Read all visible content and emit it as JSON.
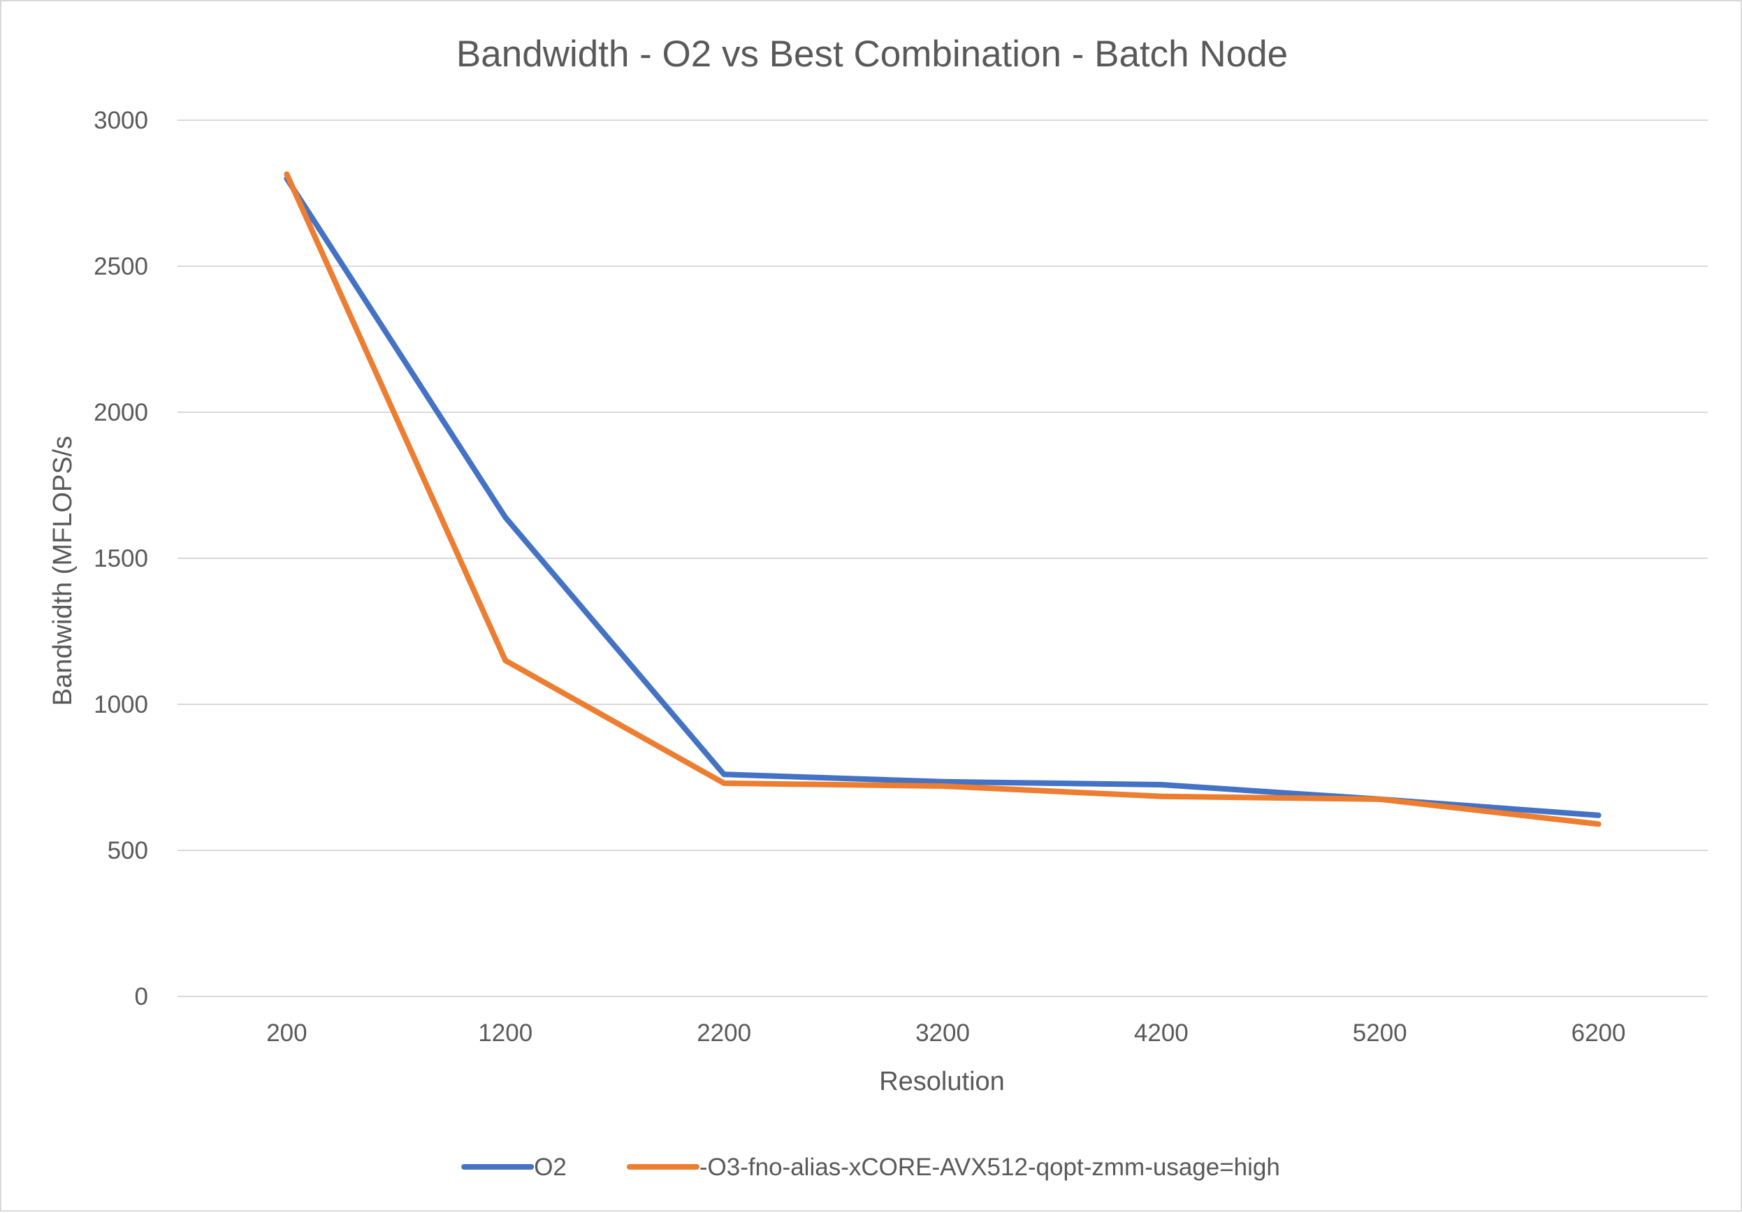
{
  "chart_data": {
    "type": "line",
    "title": "Bandwidth - O2 vs Best Combination - Batch Node",
    "xlabel": "Resolution",
    "ylabel": "Bandwidth (MFLOPS/s",
    "categories": [
      "200",
      "1200",
      "2200",
      "3200",
      "4200",
      "5200",
      "6200"
    ],
    "ylim": [
      0,
      3000
    ],
    "yticks": [
      "0",
      "500",
      "1000",
      "1500",
      "2000",
      "2500",
      "3000"
    ],
    "grid": true,
    "legend_position": "bottom",
    "series": [
      {
        "name": "O2",
        "color": "#4472c4",
        "values": [
          2800,
          1640,
          760,
          735,
          725,
          675,
          620
        ]
      },
      {
        "name": "-O3-fno-alias-xCORE-AVX512-qopt-zmm-usage=high",
        "color": "#ed7d31",
        "values": [
          2815,
          1150,
          730,
          720,
          685,
          675,
          590
        ]
      }
    ]
  }
}
